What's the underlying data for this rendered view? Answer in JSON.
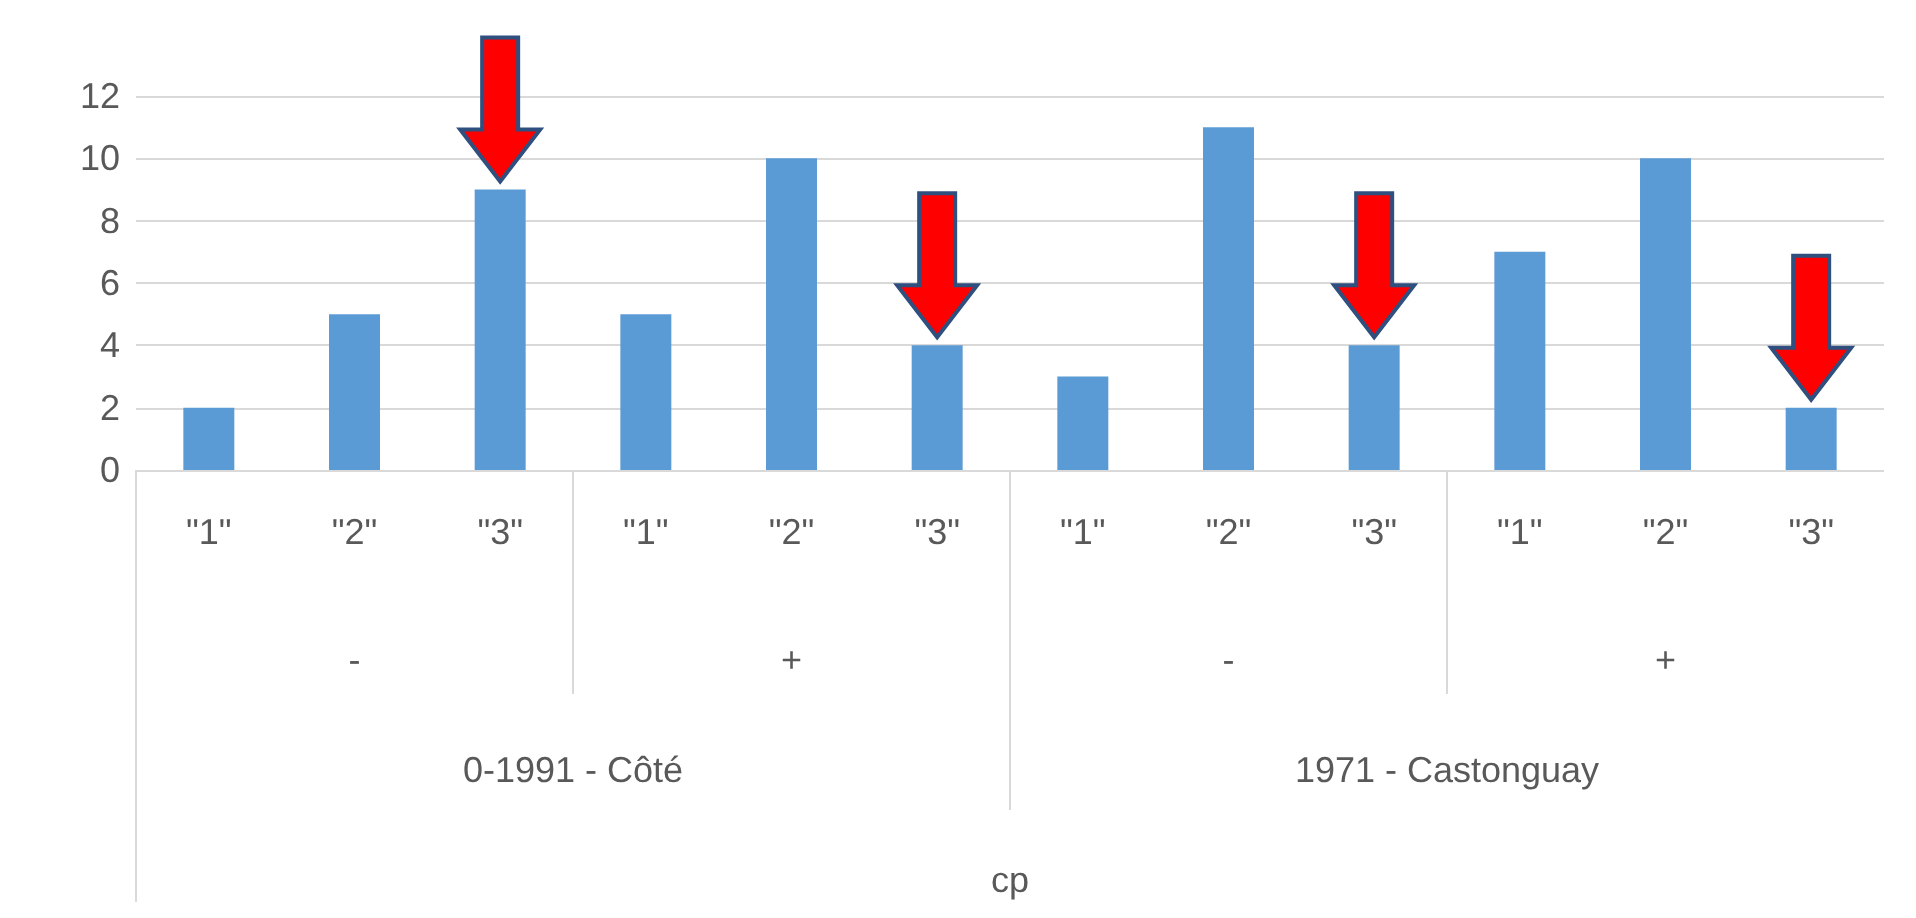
{
  "chart_data": {
    "type": "bar",
    "categories": [
      "\"1\"",
      "\"2\"",
      "\"3\"",
      "\"1\"",
      "\"2\"",
      "\"3\"",
      "\"1\"",
      "\"2\"",
      "\"3\"",
      "\"1\"",
      "\"2\"",
      "\"3\""
    ],
    "values": [
      2,
      5,
      9,
      5,
      10,
      4,
      3,
      11,
      4,
      7,
      10,
      2
    ],
    "color": "#5b9bd5",
    "ylim": [
      0,
      12
    ],
    "yticks": [
      0,
      2,
      4,
      6,
      8,
      10,
      12
    ],
    "grid": "y",
    "annotations": [
      "-",
      "+",
      "-",
      "+",
      "0-1991 - Côté",
      "1971 - Castonguay",
      "cp"
    ]
  }
}
